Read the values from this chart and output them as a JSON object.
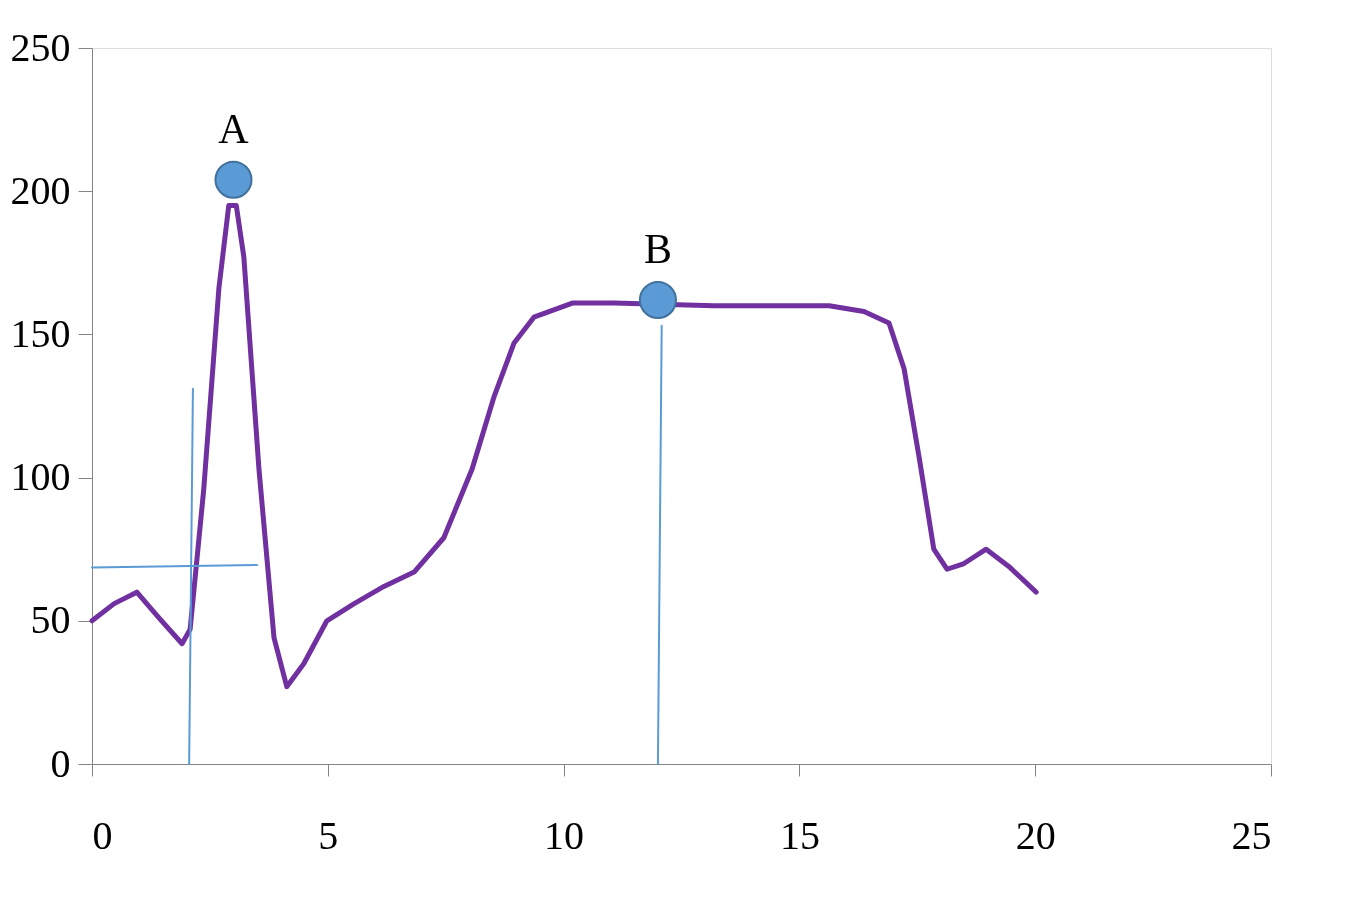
{
  "chart_data": {
    "type": "line",
    "xlim": [
      0,
      25
    ],
    "xticks": [
      0,
      5,
      10,
      15,
      20,
      25
    ],
    "ylim": [
      0,
      250
    ],
    "yticks": [
      0,
      50,
      100,
      150,
      200,
      250
    ],
    "grid": false,
    "marker": "none",
    "line_style": "solid",
    "series": [
      {
        "color": "#7030a0",
        "x": [
          0,
          0.47,
          0.95,
          1.42,
          1.91,
          2.08,
          2.37,
          2.69,
          2.9,
          3.06,
          3.22,
          3.54,
          3.86,
          4.13,
          4.49,
          4.98,
          5.56,
          6.19,
          6.83,
          7.46,
          8.06,
          8.52,
          8.95,
          9.37,
          10.2,
          11.07,
          13.19,
          14.46,
          15.63,
          16.37,
          16.9,
          17.22,
          17.54,
          17.85,
          18.13,
          18.49,
          18.96,
          19.44,
          20.02
        ],
        "values": [
          50,
          56,
          60,
          51,
          42,
          47,
          96,
          166,
          195,
          195,
          177,
          103,
          44,
          27,
          35,
          50,
          56,
          62,
          67,
          79,
          103,
          128,
          147,
          156,
          161,
          161,
          160,
          160,
          160,
          158,
          154,
          138,
          107,
          75,
          68,
          70,
          75,
          69,
          60
        ]
      },
      {
        "color": "#5b9bd5",
        "x": [
          0,
          3.5
        ],
        "values": [
          68.6,
          69.5
        ]
      },
      {
        "color": "#5b9bd5",
        "x": [
          2.14,
          2.06
        ],
        "values": [
          131,
          0
        ]
      },
      {
        "color": "#5b9bd5",
        "x": [
          12.08,
          12.0
        ],
        "values": [
          153,
          0
        ]
      },
      {
        "type": "scatter",
        "color": "#5b9bd5",
        "marker": "circle",
        "x": [
          3,
          12
        ],
        "values": [
          204,
          162
        ]
      }
    ],
    "annotations": [
      {
        "text": "A",
        "x": 3,
        "y": 204
      },
      {
        "text": "B",
        "x": 12,
        "y": 162
      }
    ]
  }
}
